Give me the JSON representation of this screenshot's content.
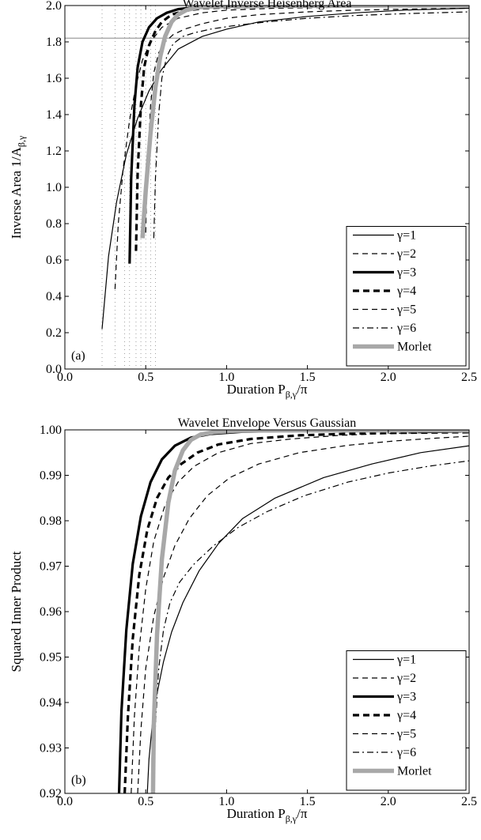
{
  "chart_data": [
    {
      "type": "line",
      "panel_label": "(a)",
      "title": "Wavelet Inverse Heisenberg Area",
      "xlabel": "Duration P",
      "xlabel_sub": "β,γ",
      "xlabel_tail": "/π",
      "ylabel": "Inverse Area 1/A",
      "ylabel_sub": "β,γ",
      "xlim": [
        0,
        2.5
      ],
      "ylim": [
        0,
        2
      ],
      "xticks": [
        "0.0",
        "0.5",
        "1.0",
        "1.5",
        "2.0",
        "2.5"
      ],
      "yticks": [
        "0.0",
        "0.2",
        "0.4",
        "0.6",
        "0.8",
        "1.0",
        "1.2",
        "1.4",
        "1.6",
        "1.8",
        "2.0"
      ],
      "hline": 1.82,
      "vlines": [
        0.23,
        0.31,
        0.37,
        0.4,
        0.44,
        0.47,
        0.5,
        0.53,
        0.56
      ],
      "legend": "bottom-right",
      "series": [
        {
          "name": "γ=1",
          "style": "thin",
          "x": [
            0.23,
            0.27,
            0.32,
            0.38,
            0.45,
            0.52,
            0.6,
            0.7,
            0.85,
            1.0,
            1.2,
            1.5,
            1.8,
            2.1,
            2.5
          ],
          "y": [
            0.22,
            0.62,
            0.92,
            1.18,
            1.38,
            1.53,
            1.65,
            1.76,
            1.83,
            1.87,
            1.91,
            1.94,
            1.96,
            1.975,
            1.985
          ]
        },
        {
          "name": "γ=2",
          "style": "thin-dash",
          "x": [
            0.31,
            0.33,
            0.36,
            0.4,
            0.44,
            0.48,
            0.53,
            0.6,
            0.7,
            0.85,
            1.0,
            1.3,
            1.7,
            2.1,
            2.5
          ],
          "y": [
            0.44,
            0.8,
            1.1,
            1.37,
            1.56,
            1.7,
            1.8,
            1.88,
            1.93,
            1.96,
            1.975,
            1.985,
            1.99,
            1.995,
            1.997
          ]
        },
        {
          "name": "γ=3",
          "style": "thick",
          "x": [
            0.4,
            0.41,
            0.43,
            0.45,
            0.48,
            0.52,
            0.57,
            0.63,
            0.7,
            0.8,
            0.95,
            1.2,
            1.6,
            2.0,
            2.5
          ],
          "y": [
            0.58,
            1.05,
            1.45,
            1.66,
            1.8,
            1.88,
            1.93,
            1.96,
            1.98,
            1.99,
            1.995,
            1.998,
            1.999,
            1.999,
            2.0
          ]
        },
        {
          "name": "γ=4",
          "style": "thick-dash",
          "x": [
            0.44,
            0.45,
            0.47,
            0.49,
            0.52,
            0.56,
            0.6,
            0.66,
            0.74,
            0.85,
            1.0,
            1.3,
            1.7,
            2.1,
            2.5
          ],
          "y": [
            0.65,
            1.08,
            1.45,
            1.66,
            1.78,
            1.86,
            1.91,
            1.95,
            1.97,
            1.985,
            1.99,
            1.995,
            1.997,
            1.998,
            1.999
          ]
        },
        {
          "name": "γ=5",
          "style": "thin-dash",
          "x": [
            0.5,
            0.51,
            0.53,
            0.55,
            0.58,
            0.62,
            0.67,
            0.74,
            0.85,
            1.0,
            1.2,
            1.5,
            1.8,
            2.1,
            2.5
          ],
          "y": [
            0.75,
            1.1,
            1.45,
            1.63,
            1.74,
            1.8,
            1.84,
            1.87,
            1.9,
            1.93,
            1.95,
            1.965,
            1.975,
            1.98,
            1.985
          ]
        },
        {
          "name": "γ=6",
          "style": "dashdot",
          "x": [
            0.55,
            0.56,
            0.58,
            0.6,
            0.63,
            0.67,
            0.73,
            0.8,
            0.9,
            1.05,
            1.25,
            1.5,
            1.8,
            2.1,
            2.5
          ],
          "y": [
            0.72,
            1.05,
            1.4,
            1.6,
            1.72,
            1.79,
            1.83,
            1.85,
            1.87,
            1.89,
            1.91,
            1.93,
            1.945,
            1.955,
            1.965
          ]
        },
        {
          "name": "Morlet",
          "style": "gray",
          "x": [
            0.48,
            0.5,
            0.53,
            0.56,
            0.59,
            0.62,
            0.66,
            0.7,
            0.75,
            0.82,
            0.9,
            1.1,
            1.5,
            2.0,
            2.5
          ],
          "y": [
            0.72,
            0.98,
            1.3,
            1.55,
            1.72,
            1.83,
            1.91,
            1.95,
            1.975,
            1.99,
            1.995,
            1.998,
            1.999,
            2.0,
            2.0
          ]
        }
      ]
    },
    {
      "type": "line",
      "panel_label": "(b)",
      "title": "Wavelet Envelope Versus Gaussian",
      "xlabel": "Duration P",
      "xlabel_sub": "β,γ",
      "xlabel_tail": "/π",
      "ylabel": "Squared Inner Product",
      "xlim": [
        0,
        2.5
      ],
      "ylim": [
        0.92,
        1.0
      ],
      "xticks": [
        "0.0",
        "0.5",
        "1.0",
        "1.5",
        "2.0",
        "2.5"
      ],
      "yticks": [
        "0.92",
        "0.93",
        "0.94",
        "0.95",
        "0.96",
        "0.97",
        "0.98",
        "0.99",
        "1.00"
      ],
      "legend": "bottom-right",
      "series": [
        {
          "name": "γ=1",
          "style": "thin",
          "x": [
            0.51,
            0.52,
            0.54,
            0.57,
            0.61,
            0.66,
            0.73,
            0.83,
            0.95,
            1.1,
            1.3,
            1.6,
            1.9,
            2.2,
            2.5
          ],
          "y": [
            0.92,
            0.9275,
            0.935,
            0.942,
            0.949,
            0.9555,
            0.962,
            0.969,
            0.975,
            0.9805,
            0.985,
            0.9895,
            0.9925,
            0.995,
            0.9965
          ]
        },
        {
          "name": "γ=2",
          "style": "thin-dash",
          "x": [
            0.41,
            0.43,
            0.46,
            0.5,
            0.55,
            0.62,
            0.7,
            0.8,
            0.95,
            1.15,
            1.4,
            1.7,
            2.0,
            2.25,
            2.5
          ],
          "y": [
            0.92,
            0.937,
            0.952,
            0.965,
            0.9755,
            0.9835,
            0.9885,
            0.992,
            0.995,
            0.997,
            0.998,
            0.9988,
            0.9992,
            0.9994,
            0.9995
          ]
        },
        {
          "name": "γ=3",
          "style": "thick",
          "x": [
            0.335,
            0.35,
            0.38,
            0.42,
            0.47,
            0.53,
            0.6,
            0.68,
            0.78,
            0.9,
            1.1,
            1.4,
            1.8,
            2.2,
            2.5
          ],
          "y": [
            0.92,
            0.938,
            0.956,
            0.9705,
            0.981,
            0.9885,
            0.9935,
            0.9965,
            0.9983,
            0.9991,
            0.9996,
            0.9998,
            0.9999,
            0.9999,
            0.9999
          ]
        },
        {
          "name": "γ=4",
          "style": "thick-dash",
          "x": [
            0.37,
            0.39,
            0.42,
            0.46,
            0.51,
            0.57,
            0.64,
            0.72,
            0.82,
            0.95,
            1.15,
            1.45,
            1.8,
            2.15,
            2.5
          ],
          "y": [
            0.92,
            0.937,
            0.954,
            0.968,
            0.978,
            0.985,
            0.9895,
            0.9925,
            0.995,
            0.9968,
            0.998,
            0.9988,
            0.9992,
            0.9994,
            0.9995
          ]
        },
        {
          "name": "γ=5",
          "style": "thin-dash",
          "x": [
            0.45,
            0.47,
            0.5,
            0.55,
            0.61,
            0.68,
            0.77,
            0.88,
            1.02,
            1.2,
            1.45,
            1.75,
            2.05,
            2.3,
            2.5
          ],
          "y": [
            0.92,
            0.934,
            0.9475,
            0.959,
            0.9675,
            0.9745,
            0.9805,
            0.9855,
            0.9895,
            0.9925,
            0.995,
            0.9966,
            0.9976,
            0.9982,
            0.9986
          ]
        },
        {
          "name": "γ=6",
          "style": "dashdot",
          "x": [
            0.55,
            0.56,
            0.58,
            0.61,
            0.65,
            0.71,
            0.8,
            0.92,
            1.07,
            1.25,
            1.48,
            1.75,
            2.0,
            2.25,
            2.5
          ],
          "y": [
            0.92,
            0.935,
            0.9475,
            0.956,
            0.962,
            0.9665,
            0.9705,
            0.9745,
            0.9785,
            0.982,
            0.9855,
            0.9885,
            0.9905,
            0.992,
            0.9932
          ]
        },
        {
          "name": "Morlet",
          "style": "gray",
          "x": [
            0.545,
            0.55,
            0.57,
            0.6,
            0.64,
            0.68,
            0.73,
            0.78,
            0.84,
            0.92,
            1.05,
            1.3,
            1.7,
            2.1,
            2.5
          ],
          "y": [
            0.92,
            0.935,
            0.955,
            0.9715,
            0.984,
            0.991,
            0.9955,
            0.9978,
            0.999,
            0.9995,
            0.9998,
            0.9999,
            0.9999,
            0.9999,
            0.9999
          ]
        }
      ]
    }
  ]
}
